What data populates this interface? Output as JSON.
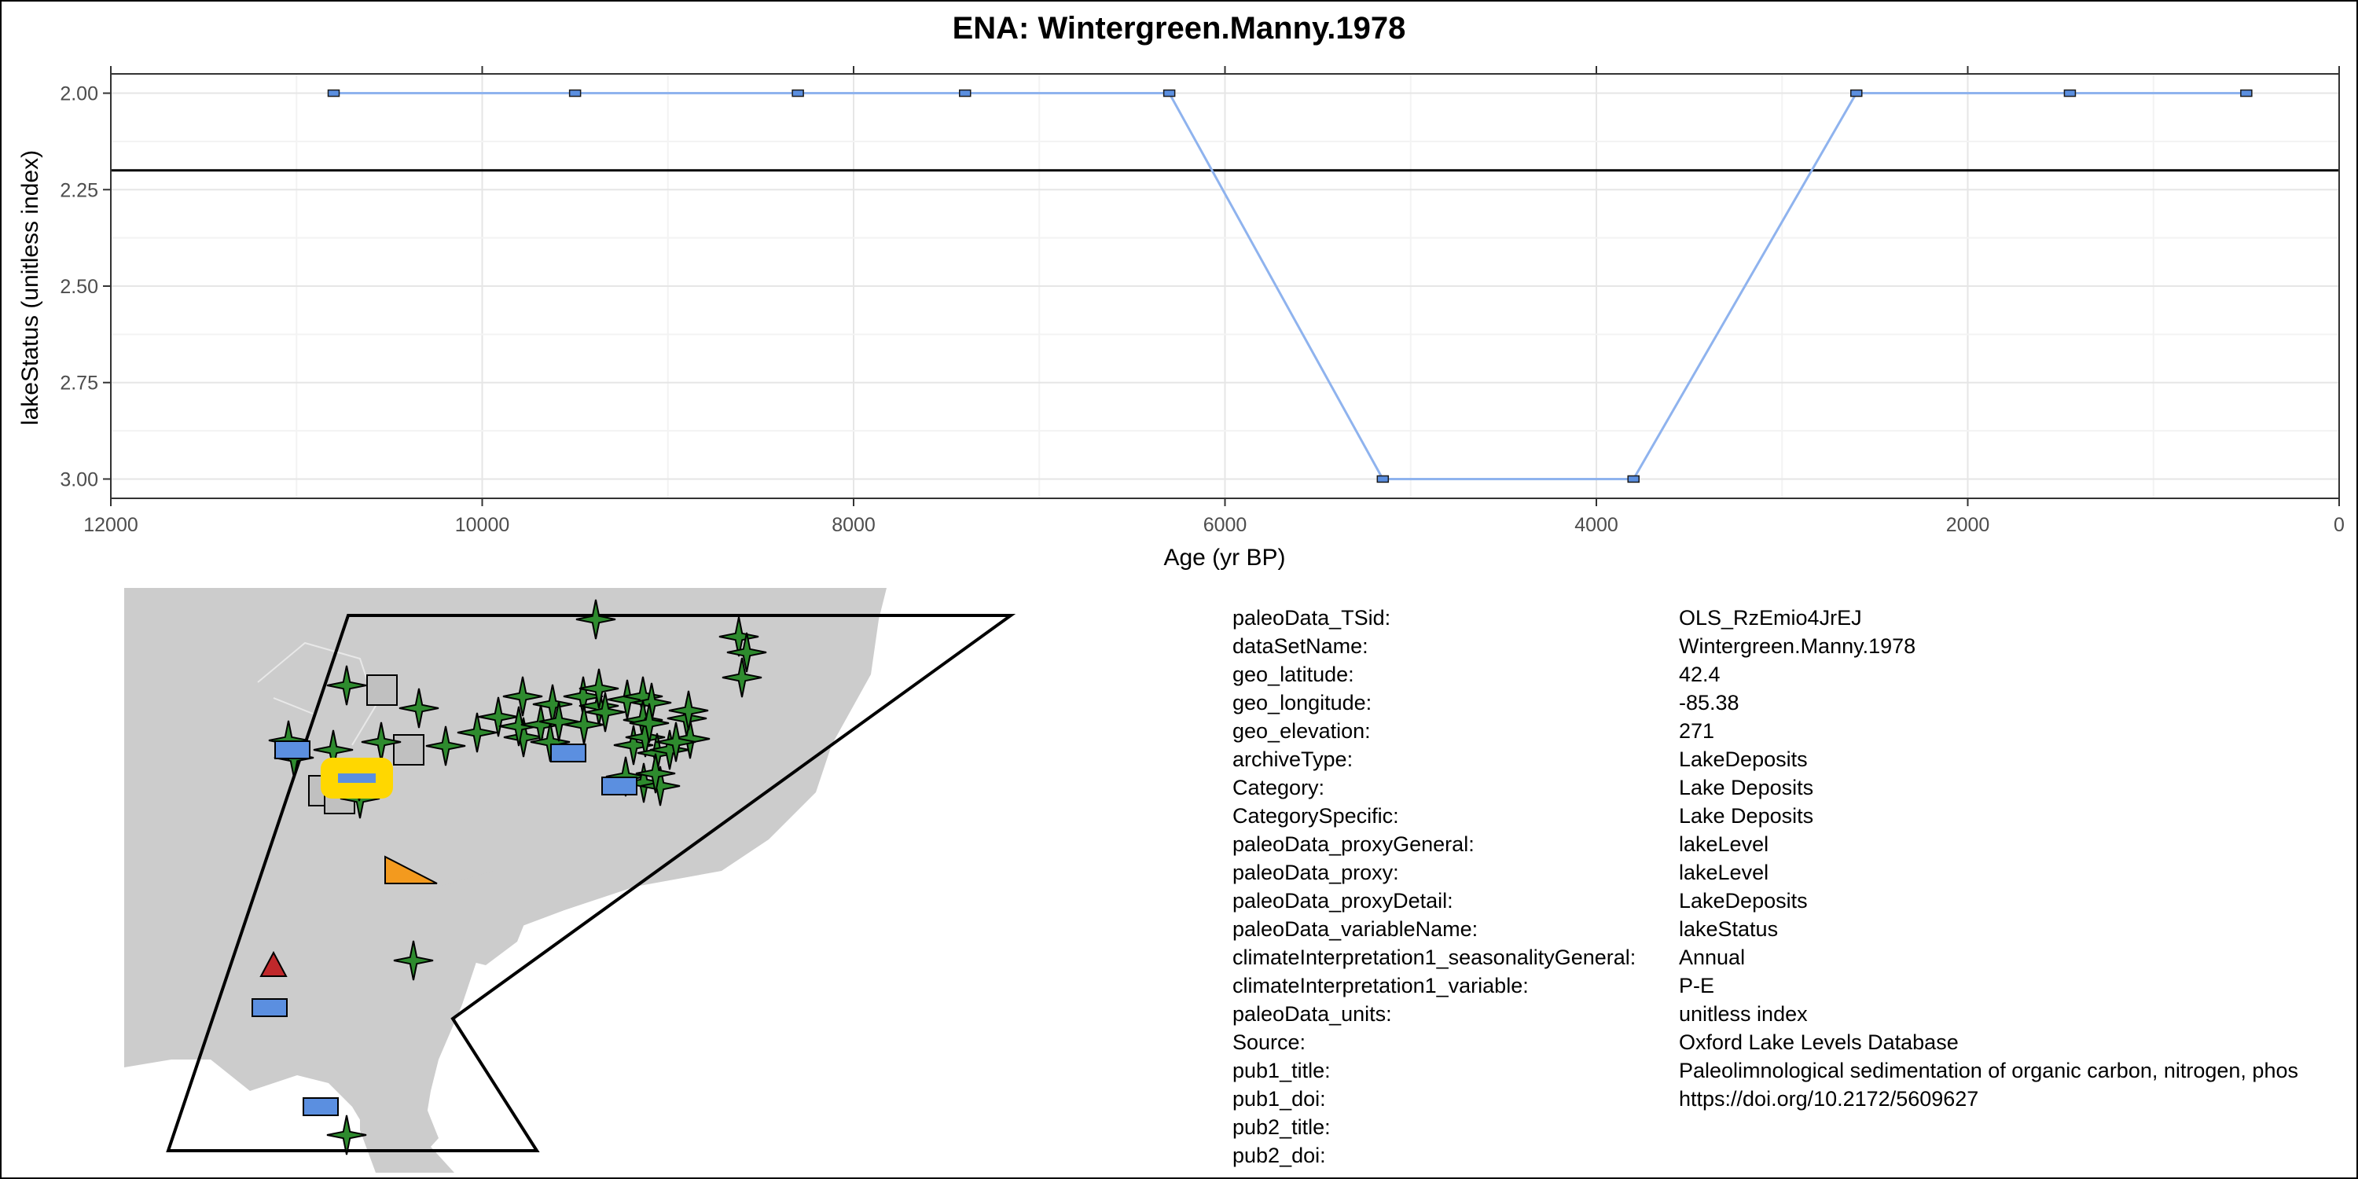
{
  "chart_data": {
    "type": "line",
    "title": "ENA: Wintergreen.Manny.1978",
    "xlabel": "Age (yr BP)",
    "ylabel": "lakeStatus (unitless index)",
    "x_reversed": true,
    "y_reversed": true,
    "xlim": [
      12000,
      0
    ],
    "ylim": [
      1.95,
      3.05
    ],
    "xticks": [
      12000,
      10000,
      8000,
      6000,
      4000,
      2000,
      0
    ],
    "xtick_labels": [
      "12000",
      "10000",
      "8000",
      "6000",
      "4000",
      "2000",
      "0"
    ],
    "yticks": [
      2.0,
      2.25,
      2.5,
      2.75,
      3.0
    ],
    "ytick_labels": [
      "2.00",
      "2.25",
      "2.50",
      "2.75",
      "3.00"
    ],
    "reference_line_y": 2.2,
    "grid": true,
    "series": [
      {
        "x": [
          10800,
          9500,
          8300,
          7400,
          6300,
          5150,
          3800,
          2600,
          1450,
          500
        ],
        "y": [
          2,
          2,
          2,
          2,
          2,
          3,
          3,
          2,
          2,
          2
        ]
      }
    ],
    "colors": {
      "line": "#8fb3ee",
      "marker_fill": "#5b8fe0",
      "reference_line": "#000000"
    }
  },
  "map": {
    "land_color": "#cccccc",
    "region_outline_color": "#000000",
    "legend_shapes": {
      "star": "#2e8b2e",
      "square": "#c0c0c0",
      "rectangle": "#5b8fe0",
      "triangle-right": "#f39a1e",
      "triangle-up": "#c0282b",
      "highlight": "#ffd700"
    }
  },
  "metadata": [
    {
      "key": "paleoData_TSid:",
      "value": "OLS_RzEmio4JrEJ"
    },
    {
      "key": "dataSetName:",
      "value": "Wintergreen.Manny.1978"
    },
    {
      "key": "geo_latitude:",
      "value": "42.4"
    },
    {
      "key": "geo_longitude:",
      "value": "-85.38"
    },
    {
      "key": "geo_elevation:",
      "value": "271"
    },
    {
      "key": "archiveType:",
      "value": "LakeDeposits"
    },
    {
      "key": "Category:",
      "value": "Lake Deposits"
    },
    {
      "key": "CategorySpecific:",
      "value": "Lake Deposits"
    },
    {
      "key": "paleoData_proxyGeneral:",
      "value": "lakeLevel"
    },
    {
      "key": "paleoData_proxy:",
      "value": "lakeLevel"
    },
    {
      "key": "paleoData_proxyDetail:",
      "value": "LakeDeposits"
    },
    {
      "key": "paleoData_variableName:",
      "value": "lakeStatus"
    },
    {
      "key": "climateInterpretation1_seasonalityGeneral:",
      "value": "Annual"
    },
    {
      "key": "climateInterpretation1_variable:",
      "value": "P-E"
    },
    {
      "key": "paleoData_units:",
      "value": "unitless index"
    },
    {
      "key": "Source:",
      "value": "Oxford Lake Levels Database"
    },
    {
      "key": "pub1_title:",
      "value": "Paleolimnological sedimentation of organic carbon, nitrogen, phos"
    },
    {
      "key": "pub1_doi:",
      "value": "https://doi.org/10.2172/5609627"
    },
    {
      "key": "pub2_title:",
      "value": ""
    },
    {
      "key": "pub2_doi:",
      "value": ""
    }
  ]
}
